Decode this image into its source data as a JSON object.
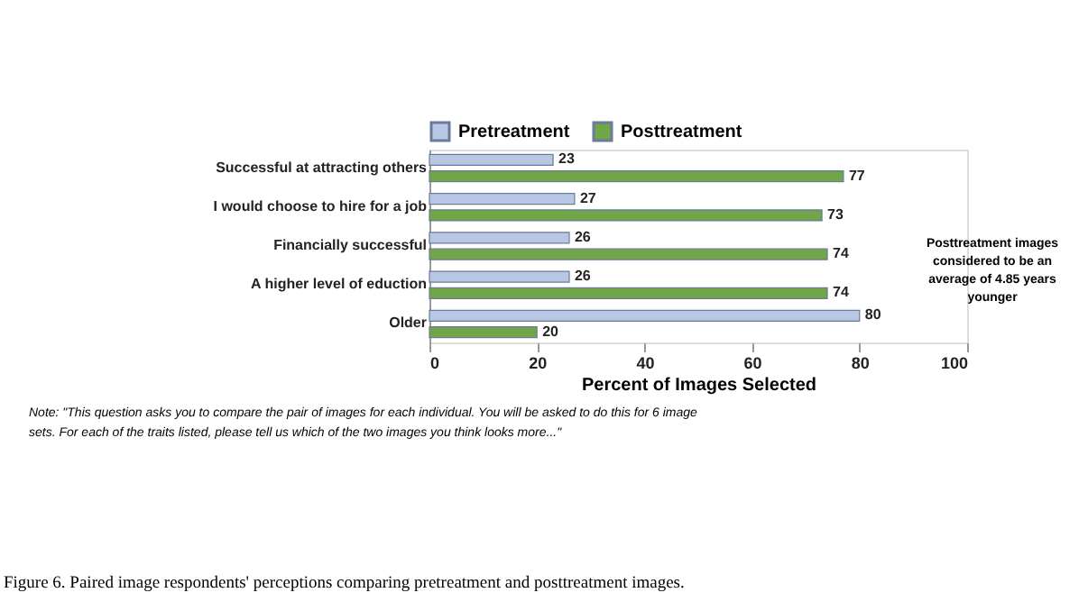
{
  "chart_data": {
    "type": "bar",
    "orientation": "horizontal",
    "categories": [
      "Successful at attracting others",
      "I would choose to hire for a job",
      "Financially successful",
      "A higher level of eduction",
      "Older"
    ],
    "series": [
      {
        "name": "Pretreatment",
        "color": "#b8c7e3",
        "values": [
          23,
          27,
          26,
          26,
          80
        ]
      },
      {
        "name": "Posttreatment",
        "color": "#70a548",
        "values": [
          77,
          73,
          74,
          74,
          20
        ]
      }
    ],
    "xlabel": "Percent of Images Selected",
    "xlim": [
      0,
      100
    ],
    "xticks": [
      0,
      20,
      40,
      60,
      80,
      100
    ],
    "data_labels": true,
    "grid": false,
    "legend": "top",
    "annotations": [
      "Posttreatment images considered to be an average of 4.85 years younger",
      "Note: \"This question asks you to compare the pair of images for each individual. You will be asked to do this for 6 image sets. For each of the traits listed, please tell us which of the two images you think looks more...\"",
      "Figure 6. Paired image respondents' perceptions comparing pretreatment and posttreatment images."
    ]
  }
}
